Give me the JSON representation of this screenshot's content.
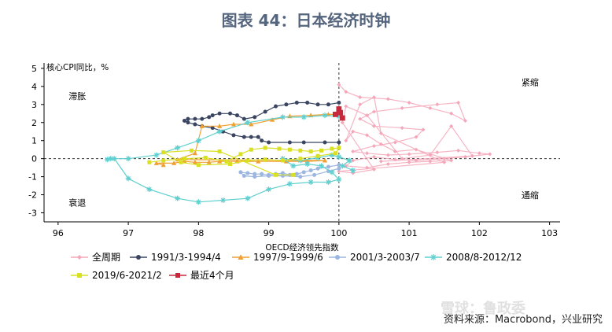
{
  "figure_title": "图表 44：日本经济时钟",
  "source": "资料来源：Macrobond，兴业研究",
  "watermark": "雪球：鲁政委",
  "chart_data": {
    "type": "scatter",
    "title": "",
    "xlabel": "OECD经济领先指数",
    "ylabel": "核心CPI同比，%",
    "xlim": [
      95.8,
      103.15
    ],
    "ylim": [
      -3.5,
      5.3
    ],
    "xticks": [
      96,
      97,
      98,
      99,
      100,
      101,
      102,
      103
    ],
    "yticks": [
      -3,
      -2,
      -1,
      0,
      1,
      2,
      3,
      4,
      5
    ],
    "reference_lines": {
      "x": 100,
      "y": 0
    },
    "quadrant_labels": [
      {
        "text": "滞胀",
        "x": 96.15,
        "y": 3.3
      },
      {
        "text": "紧缩",
        "x": 102.6,
        "y": 4.05
      },
      {
        "text": "衰退",
        "x": 96.15,
        "y": -2.6
      },
      {
        "text": "通缩",
        "x": 102.6,
        "y": -2.2
      }
    ],
    "legend_position": "bottom",
    "series": [
      {
        "name": "全周期",
        "color": "#f4a7b9",
        "marker": "diamond",
        "points": [
          [
            100.0,
            4.1
          ],
          [
            100.1,
            3.7
          ],
          [
            100.3,
            3.4
          ],
          [
            100.7,
            3.3
          ],
          [
            101.0,
            3.1
          ],
          [
            101.3,
            2.8
          ],
          [
            101.6,
            2.5
          ],
          [
            101.8,
            2.1
          ],
          [
            101.7,
            3.1
          ],
          [
            101.4,
            3.0
          ],
          [
            100.9,
            2.8
          ],
          [
            100.5,
            2.6
          ],
          [
            100.3,
            2.2
          ],
          [
            100.5,
            1.8
          ],
          [
            100.9,
            1.7
          ],
          [
            101.2,
            1.6
          ],
          [
            101.1,
            1.2
          ],
          [
            100.8,
            0.9
          ],
          [
            100.5,
            0.7
          ],
          [
            100.2,
            0.4
          ],
          [
            100.4,
            0.3
          ],
          [
            100.7,
            0.2
          ],
          [
            101.0,
            0.25
          ],
          [
            101.4,
            0.35
          ],
          [
            101.7,
            0.45
          ],
          [
            102.0,
            0.3
          ],
          [
            102.15,
            0.25
          ],
          [
            101.8,
            0.1
          ],
          [
            101.5,
            0.0
          ],
          [
            101.1,
            -0.1
          ],
          [
            100.8,
            -0.05
          ],
          [
            100.5,
            0.1
          ],
          [
            100.2,
            -0.1
          ],
          [
            100.1,
            -0.4
          ],
          [
            100.4,
            -0.5
          ],
          [
            100.7,
            -0.3
          ],
          [
            101.0,
            -0.2
          ],
          [
            101.3,
            -0.15
          ],
          [
            101.6,
            -0.1
          ],
          [
            101.1,
            0.5
          ],
          [
            100.8,
            0.4
          ],
          [
            100.6,
            0.8
          ],
          [
            100.4,
            1.3
          ],
          [
            100.2,
            1.5
          ],
          [
            100.1,
            1.0
          ],
          [
            100.3,
            3.0
          ],
          [
            100.5,
            3.4
          ],
          [
            100.6,
            1.4
          ],
          [
            101.5,
            -0.2
          ],
          [
            100.0,
            -0.7
          ],
          [
            100.2,
            -0.8
          ],
          [
            100.5,
            -0.6
          ],
          [
            100.05,
            2.0
          ],
          [
            100.1,
            2.9
          ],
          [
            100.4,
            2.4
          ],
          [
            100.9,
            0.0
          ],
          [
            101.3,
            0.2
          ],
          [
            101.6,
            1.8
          ],
          [
            101.9,
            0.15
          ],
          [
            100.6,
            -0.15
          ]
        ]
      },
      {
        "name": "1991/3-1994/4",
        "color": "#3a4661",
        "marker": "circle",
        "points": [
          [
            100.0,
            0.9
          ],
          [
            99.8,
            0.9
          ],
          [
            99.5,
            0.9
          ],
          [
            99.3,
            0.9
          ],
          [
            99.0,
            0.9
          ],
          [
            98.9,
            1.0
          ],
          [
            98.85,
            1.2
          ],
          [
            98.75,
            1.2
          ],
          [
            98.65,
            1.2
          ],
          [
            98.5,
            1.3
          ],
          [
            98.35,
            1.5
          ],
          [
            98.2,
            1.7
          ],
          [
            98.05,
            1.8
          ],
          [
            97.95,
            1.9
          ],
          [
            97.85,
            2.0
          ],
          [
            97.8,
            2.1
          ],
          [
            97.85,
            2.2
          ],
          [
            97.95,
            2.2
          ],
          [
            98.05,
            2.2
          ],
          [
            98.15,
            2.3
          ],
          [
            98.2,
            2.4
          ],
          [
            98.3,
            2.5
          ],
          [
            98.45,
            2.5
          ],
          [
            98.55,
            2.4
          ],
          [
            98.65,
            2.2
          ],
          [
            98.8,
            2.3
          ],
          [
            98.95,
            2.6
          ],
          [
            99.1,
            2.9
          ],
          [
            99.25,
            3.0
          ],
          [
            99.4,
            3.1
          ],
          [
            99.55,
            3.1
          ],
          [
            99.7,
            3.0
          ],
          [
            99.85,
            3.0
          ],
          [
            100.0,
            3.1
          ]
        ]
      },
      {
        "name": "1997/9-1999/6",
        "color": "#f0a030",
        "marker": "triangle",
        "points": [
          [
            97.5,
            -0.35
          ],
          [
            97.4,
            -0.25
          ],
          [
            97.65,
            -0.25
          ],
          [
            97.8,
            -0.15
          ],
          [
            97.95,
            -0.2
          ],
          [
            98.15,
            -0.2
          ],
          [
            98.3,
            -0.15
          ],
          [
            98.55,
            -0.15
          ],
          [
            98.85,
            -0.15
          ],
          [
            99.25,
            -0.15
          ],
          [
            99.55,
            -0.15
          ],
          [
            99.8,
            -0.1
          ],
          [
            97.7,
            -0.05
          ],
          [
            97.95,
            0.3
          ],
          [
            98.05,
            1.8
          ],
          [
            98.3,
            1.8
          ],
          [
            98.5,
            1.9
          ],
          [
            98.75,
            1.9
          ],
          [
            99.05,
            2.15
          ],
          [
            99.3,
            2.35
          ],
          [
            99.6,
            2.4
          ],
          [
            99.85,
            2.45
          ],
          [
            100.0,
            2.45
          ]
        ]
      },
      {
        "name": "2001/3-2003/7",
        "color": "#9bb6e0",
        "marker": "circle",
        "points": [
          [
            100.0,
            -0.35
          ],
          [
            99.85,
            -0.45
          ],
          [
            99.7,
            -0.55
          ],
          [
            99.6,
            -0.65
          ],
          [
            99.5,
            -0.75
          ],
          [
            99.4,
            -0.85
          ],
          [
            99.3,
            -0.9
          ],
          [
            99.2,
            -0.8
          ],
          [
            99.1,
            -0.85
          ],
          [
            99.0,
            -0.9
          ],
          [
            98.9,
            -0.85
          ],
          [
            98.8,
            -0.85
          ],
          [
            98.7,
            -0.8
          ],
          [
            98.6,
            -0.75
          ],
          [
            98.65,
            -0.95
          ],
          [
            98.8,
            -1.0
          ],
          [
            99.0,
            -0.95
          ],
          [
            99.2,
            -0.95
          ],
          [
            99.45,
            -1.0
          ],
          [
            99.65,
            -0.9
          ],
          [
            99.85,
            -0.7
          ],
          [
            100.0,
            -0.55
          ]
        ]
      },
      {
        "name": "2008/8-2012/12",
        "color": "#5fcfcf",
        "marker": "asterisk",
        "points": [
          [
            100.0,
            2.35
          ],
          [
            99.8,
            2.4
          ],
          [
            99.5,
            2.3
          ],
          [
            99.2,
            2.3
          ],
          [
            98.7,
            2.0
          ],
          [
            98.3,
            1.5
          ],
          [
            98.0,
            1.0
          ],
          [
            97.7,
            0.6
          ],
          [
            97.4,
            0.2
          ],
          [
            97.0,
            0.0
          ],
          [
            96.75,
            0.0
          ],
          [
            96.7,
            -0.05
          ],
          [
            96.8,
            0.0
          ],
          [
            97.0,
            -1.1
          ],
          [
            97.3,
            -1.7
          ],
          [
            97.7,
            -2.2
          ],
          [
            98.0,
            -2.4
          ],
          [
            98.35,
            -2.3
          ],
          [
            98.7,
            -2.2
          ],
          [
            99.0,
            -1.7
          ],
          [
            99.3,
            -1.4
          ],
          [
            99.6,
            -1.3
          ],
          [
            99.85,
            -1.3
          ],
          [
            100.0,
            -1.15
          ],
          [
            99.9,
            -0.75
          ],
          [
            99.75,
            -0.4
          ],
          [
            99.55,
            -0.3
          ],
          [
            99.35,
            -0.4
          ],
          [
            99.2,
            0.0
          ],
          [
            99.45,
            -0.1
          ],
          [
            99.7,
            0.05
          ],
          [
            99.9,
            0.2
          ],
          [
            100.0,
            0.1
          ],
          [
            100.15,
            -0.1
          ],
          [
            100.05,
            -0.4
          ],
          [
            100.2,
            -0.65
          ]
        ]
      },
      {
        "name": "2019/6-2021/2",
        "color": "#d9e021",
        "marker": "square",
        "points": [
          [
            97.3,
            -0.2
          ],
          [
            97.5,
            -0.1
          ],
          [
            97.8,
            0.0
          ],
          [
            98.1,
            0.05
          ],
          [
            98.4,
            -0.15
          ],
          [
            98.6,
            0.25
          ],
          [
            98.75,
            0.5
          ],
          [
            98.95,
            0.6
          ],
          [
            99.15,
            0.55
          ],
          [
            99.3,
            0.5
          ],
          [
            99.45,
            0.45
          ],
          [
            99.6,
            0.4
          ],
          [
            99.75,
            0.45
          ],
          [
            99.9,
            0.55
          ],
          [
            100.0,
            0.6
          ],
          [
            99.95,
            0.3
          ],
          [
            99.7,
            0.15
          ],
          [
            99.45,
            0.0
          ],
          [
            99.2,
            -0.1
          ],
          [
            98.95,
            -0.05
          ],
          [
            98.7,
            -0.1
          ],
          [
            98.45,
            -0.3
          ],
          [
            98.0,
            -0.35
          ],
          [
            97.75,
            -0.2
          ],
          [
            97.5,
            0.35
          ],
          [
            97.9,
            0.45
          ],
          [
            98.3,
            0.4
          ],
          [
            99.1,
            -0.9
          ],
          [
            99.35,
            -0.9
          ]
        ]
      },
      {
        "name": "最近4个月",
        "color": "#c8283c",
        "marker": "square",
        "points": [
          [
            99.95,
            2.45
          ],
          [
            100.0,
            2.75
          ],
          [
            100.02,
            2.55
          ],
          [
            100.05,
            2.25
          ]
        ]
      }
    ]
  }
}
